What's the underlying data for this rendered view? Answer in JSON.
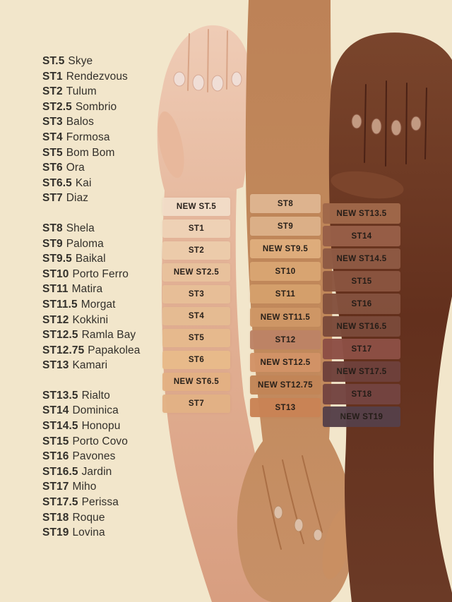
{
  "page": {
    "background": "#f2e6cb",
    "text_color": "#33302b"
  },
  "shade_list": {
    "groups": [
      {
        "items": [
          {
            "code": "ST.5",
            "name": "Skye"
          },
          {
            "code": "ST1",
            "name": "Rendezvous"
          },
          {
            "code": "ST2",
            "name": "Tulum"
          },
          {
            "code": "ST2.5",
            "name": "Sombrio"
          },
          {
            "code": "ST3",
            "name": "Balos"
          },
          {
            "code": "ST4",
            "name": "Formosa"
          },
          {
            "code": "ST5",
            "name": "Bom Bom"
          },
          {
            "code": "ST6",
            "name": "Ora"
          },
          {
            "code": "ST6.5",
            "name": "Kai"
          },
          {
            "code": "ST7",
            "name": "Diaz"
          }
        ]
      },
      {
        "items": [
          {
            "code": "ST8",
            "name": "Shela"
          },
          {
            "code": "ST9",
            "name": "Paloma"
          },
          {
            "code": "ST9.5",
            "name": "Baikal"
          },
          {
            "code": "ST10",
            "name": "Porto Ferro"
          },
          {
            "code": "ST11",
            "name": "Matira"
          },
          {
            "code": "ST11.5",
            "name": "Morgat"
          },
          {
            "code": "ST12",
            "name": "Kokkini"
          },
          {
            "code": "ST12.5",
            "name": "Ramla Bay"
          },
          {
            "code": "ST12.75",
            "name": "Papakolea"
          },
          {
            "code": "ST13",
            "name": "Kamari"
          }
        ]
      },
      {
        "items": [
          {
            "code": "ST13.5",
            "name": "Rialto"
          },
          {
            "code": "ST14",
            "name": "Dominica"
          },
          {
            "code": "ST14.5",
            "name": "Honopu"
          },
          {
            "code": "ST15",
            "name": "Porto Covo"
          },
          {
            "code": "ST16",
            "name": "Pavones"
          },
          {
            "code": "ST16.5",
            "name": "Jardin"
          },
          {
            "code": "ST17",
            "name": "Miho"
          },
          {
            "code": "ST17.5",
            "name": "Perissa"
          },
          {
            "code": "ST18",
            "name": "Roque"
          },
          {
            "code": "ST19",
            "name": "Lovina"
          }
        ]
      }
    ]
  },
  "arms": [
    {
      "id": "light-arm",
      "skin_tone": "#e3b296",
      "skin_highlight": "#eec9b3",
      "skin_shadow": "#d89e80",
      "swatches": [
        {
          "label": "NEW ST.5",
          "color": "#f2ddc8"
        },
        {
          "label": "ST1",
          "color": "#efd2b6"
        },
        {
          "label": "ST2",
          "color": "#edccab"
        },
        {
          "label": "NEW ST2.5",
          "color": "#e9c29d"
        },
        {
          "label": "ST3",
          "color": "#e8bf98"
        },
        {
          "label": "ST4",
          "color": "#e6bc92"
        },
        {
          "label": "ST5",
          "color": "#e7ba8d"
        },
        {
          "label": "ST6",
          "color": "#e9bb8a"
        },
        {
          "label": "NEW ST6.5",
          "color": "#e4b183"
        },
        {
          "label": "ST7",
          "color": "#e3b285"
        }
      ]
    },
    {
      "id": "medium-arm",
      "skin_tone": "#c28a5c",
      "skin_highlight": "#cd9668",
      "skin_shadow": "#b97c4e",
      "swatches": [
        {
          "label": "ST8",
          "color": "#deb590"
        },
        {
          "label": "ST9",
          "color": "#dcb189"
        },
        {
          "label": "NEW ST9.5",
          "color": "#dfae7d"
        },
        {
          "label": "ST10",
          "color": "#d9a572"
        },
        {
          "label": "ST11",
          "color": "#d5a06c"
        },
        {
          "label": "NEW ST11.5",
          "color": "#cf9766"
        },
        {
          "label": "ST12",
          "color": "#bd8366"
        },
        {
          "label": "NEW ST12.5",
          "color": "#d29367"
        },
        {
          "label": "NEW ST12.75",
          "color": "#c28557"
        },
        {
          "label": "ST13",
          "color": "#ca8355"
        }
      ]
    },
    {
      "id": "deep-arm",
      "skin_tone": "#6b3a26",
      "skin_highlight": "#7a452c",
      "skin_shadow": "#5f2e1c",
      "swatches": [
        {
          "label": "NEW ST13.5",
          "color": "#a0684a"
        },
        {
          "label": "ST14",
          "color": "#985f48"
        },
        {
          "label": "NEW ST14.5",
          "color": "#8f5a44"
        },
        {
          "label": "ST15",
          "color": "#8b553f"
        },
        {
          "label": "ST16",
          "color": "#84513e"
        },
        {
          "label": "NEW ST16.5",
          "color": "#7b4a3a"
        },
        {
          "label": "ST17",
          "color": "#8d4f45"
        },
        {
          "label": "NEW ST17.5",
          "color": "#6f413b"
        },
        {
          "label": "ST18",
          "color": "#744441"
        },
        {
          "label": "NEW ST19",
          "color": "#564049"
        }
      ]
    }
  ]
}
